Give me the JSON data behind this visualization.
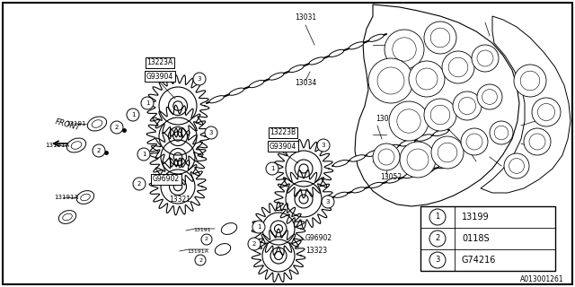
{
  "bg_color": "#ffffff",
  "part_number": "A013001261",
  "legend_items": [
    {
      "num": "1",
      "code": "13199"
    },
    {
      "num": "2",
      "code": "0118S"
    },
    {
      "num": "3",
      "code": "G74216"
    }
  ]
}
